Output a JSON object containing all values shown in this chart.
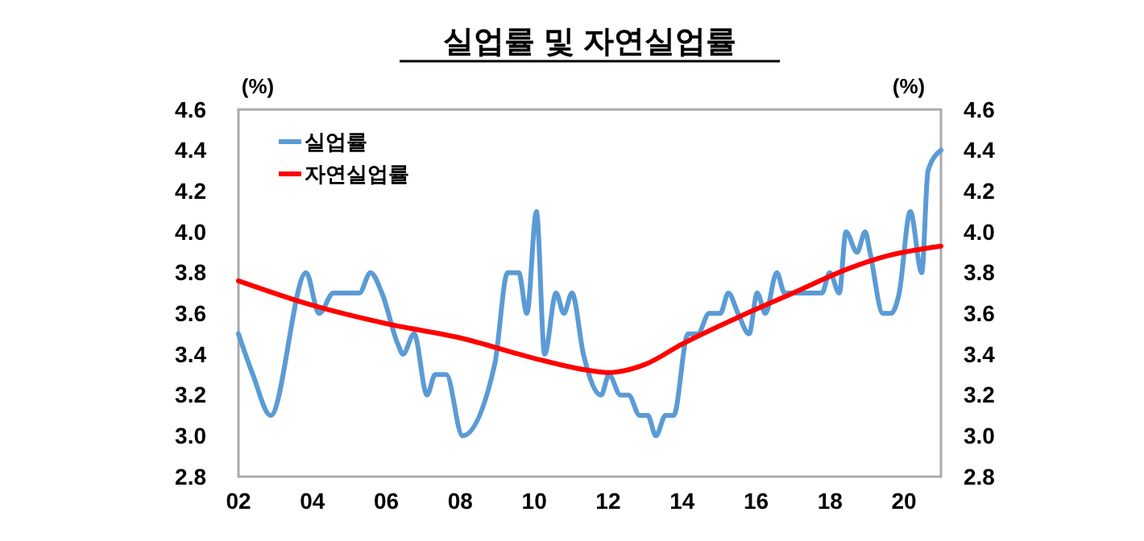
{
  "chart_data": {
    "type": "line",
    "title": "실업률 및 자연실업률",
    "ylabel": "(%)",
    "y2label": "(%)",
    "xlim": [
      2002,
      2021
    ],
    "xticks": [
      {
        "value": 2002,
        "label": "02"
      },
      {
        "value": 2004,
        "label": "04"
      },
      {
        "value": 2006,
        "label": "06"
      },
      {
        "value": 2008,
        "label": "08"
      },
      {
        "value": 2010,
        "label": "10"
      },
      {
        "value": 2012,
        "label": "12"
      },
      {
        "value": 2014,
        "label": "14"
      },
      {
        "value": 2016,
        "label": "16"
      },
      {
        "value": 2018,
        "label": "18"
      },
      {
        "value": 2020,
        "label": "20"
      }
    ],
    "ylim": [
      2.8,
      4.6
    ],
    "yticks": [
      {
        "value": 2.8,
        "label": "2.8"
      },
      {
        "value": 3,
        "label": "3.0"
      },
      {
        "value": 3.2,
        "label": "3.2"
      },
      {
        "value": 3.4,
        "label": "3.4"
      },
      {
        "value": 3.6,
        "label": "3.6"
      },
      {
        "value": 3.8,
        "label": "3.8"
      },
      {
        "value": 4,
        "label": "4.0"
      },
      {
        "value": 4.2,
        "label": "4.2"
      },
      {
        "value": 4.4,
        "label": "4.4"
      },
      {
        "value": 4.6,
        "label": "4.6"
      }
    ],
    "y2lim": [
      2.8,
      4.6
    ],
    "y2ticks": [
      {
        "value": 2.8,
        "label": "2.8"
      },
      {
        "value": 3,
        "label": "3.0"
      },
      {
        "value": 3.2,
        "label": "3.2"
      },
      {
        "value": 3.4,
        "label": "3.4"
      },
      {
        "value": 3.6,
        "label": "3.6"
      },
      {
        "value": 3.8,
        "label": "3.8"
      },
      {
        "value": 4,
        "label": "4.0"
      },
      {
        "value": 4.2,
        "label": "4.2"
      },
      {
        "value": 4.4,
        "label": "4.4"
      },
      {
        "value": 4.6,
        "label": "4.6"
      }
    ],
    "grid": false,
    "legend": "top left",
    "marker": "none",
    "line_style": "solid",
    "series": [
      {
        "name": "실업률",
        "color": "#5b9bd5",
        "x": [
          2002.0,
          2002.39,
          2002.87,
          2003.83,
          2004.18,
          2004.57,
          2005.27,
          2005.57,
          2005.88,
          2006.31,
          2006.45,
          2006.75,
          2007.1,
          2007.32,
          2007.62,
          2008.06,
          2008.93,
          2009.28,
          2009.58,
          2009.8,
          2010.06,
          2010.28,
          2010.59,
          2010.8,
          2011.02,
          2011.33,
          2011.81,
          2012.02,
          2012.33,
          2012.55,
          2012.85,
          2013.07,
          2013.29,
          2013.55,
          2013.77,
          2014.16,
          2014.42,
          2014.73,
          2015.03,
          2015.25,
          2015.51,
          2015.81,
          2016.03,
          2016.25,
          2016.56,
          2016.77,
          2017.78,
          2017.99,
          2018.25,
          2018.43,
          2018.73,
          2018.95,
          2019.08,
          2019.43,
          2019.65,
          2019.87,
          2020.17,
          2020.48,
          2020.65,
          2021.0
        ],
        "values": [
          3.5,
          3.3,
          3.1,
          3.8,
          3.6,
          3.7,
          3.7,
          3.8,
          3.7,
          3.45,
          3.4,
          3.5,
          3.2,
          3.3,
          3.3,
          3.0,
          3.35,
          3.8,
          3.8,
          3.6,
          4.1,
          3.4,
          3.7,
          3.6,
          3.7,
          3.4,
          3.2,
          3.3,
          3.2,
          3.2,
          3.1,
          3.1,
          3.0,
          3.1,
          3.1,
          3.5,
          3.5,
          3.6,
          3.6,
          3.7,
          3.6,
          3.5,
          3.7,
          3.6,
          3.8,
          3.7,
          3.7,
          3.8,
          3.7,
          4.0,
          3.9,
          4.0,
          3.9,
          3.6,
          3.6,
          3.7,
          4.1,
          3.8,
          4.3,
          4.4
        ]
      },
      {
        "name": "자연실업률",
        "color": "#ff0000",
        "x": [
          2002,
          2004,
          2006,
          2008,
          2010,
          2011.5,
          2012,
          2013,
          2014,
          2015.5,
          2017,
          2018.5,
          2019.5,
          2021
        ],
        "values": [
          3.76,
          3.64,
          3.55,
          3.48,
          3.38,
          3.32,
          3.31,
          3.35,
          3.45,
          3.58,
          3.7,
          3.82,
          3.88,
          3.93
        ]
      }
    ]
  }
}
